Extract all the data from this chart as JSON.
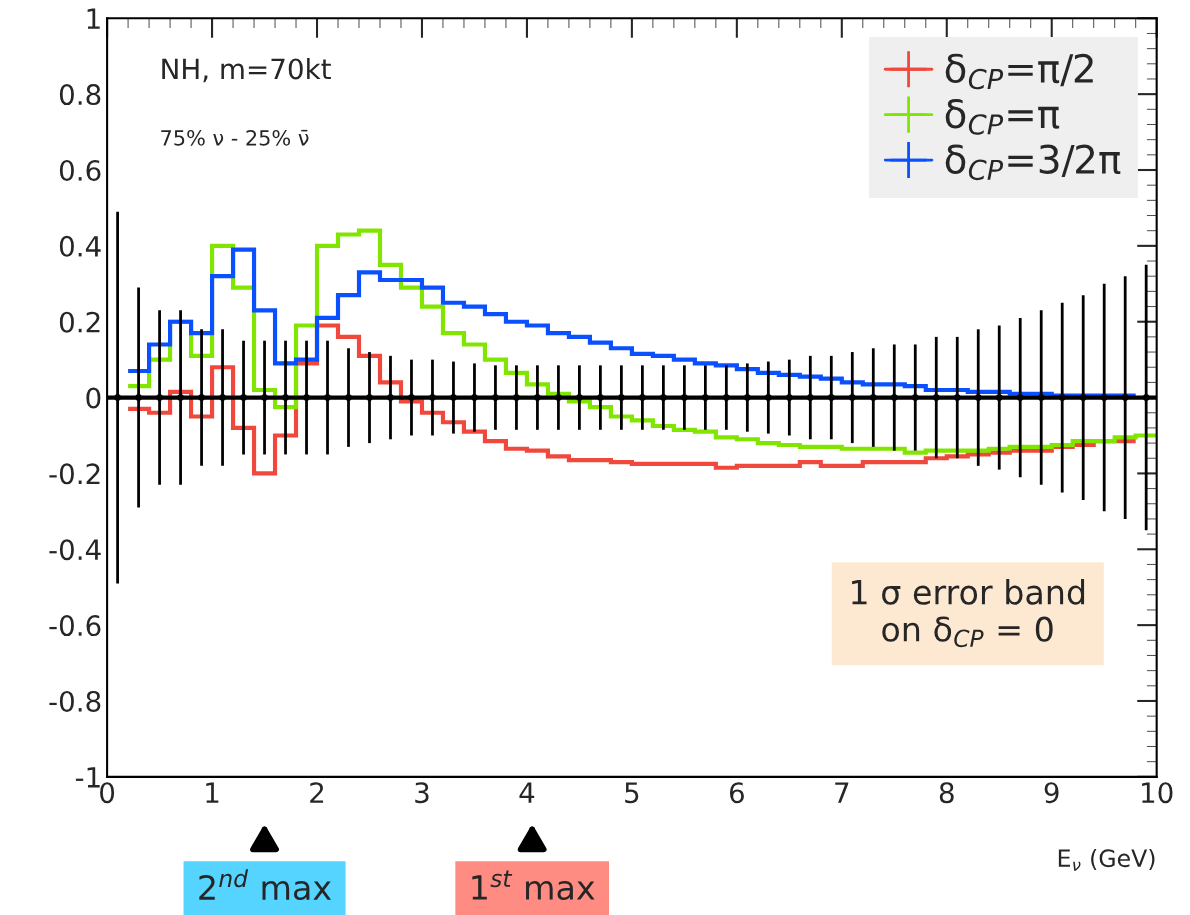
{
  "chart_data": {
    "type": "histogram",
    "bins": [
      0.2,
      0.4,
      0.6,
      0.8,
      1.0,
      1.2,
      1.4,
      1.6,
      1.8,
      2.0,
      2.2,
      2.4,
      2.6,
      2.8,
      3.0,
      3.2,
      3.4,
      3.6,
      3.8,
      4.0,
      4.2,
      4.4,
      4.6,
      4.8,
      5.0,
      5.2,
      5.4,
      5.6,
      5.8,
      6.0,
      6.2,
      6.4,
      6.6,
      6.8,
      7.0,
      7.2,
      7.4,
      7.6,
      7.8,
      8.0,
      8.2,
      8.4,
      8.6,
      8.8,
      9.0,
      9.2,
      9.4,
      9.6,
      9.8
    ],
    "series": [
      {
        "name": "δ$_{CP}$=π/2",
        "color": "#f0483c",
        "values": [
          -0.03,
          -0.04,
          0.015,
          -0.05,
          0.08,
          -0.08,
          -0.2,
          -0.1,
          0.09,
          0.19,
          0.16,
          0.11,
          0.04,
          -0.01,
          -0.04,
          -0.065,
          -0.09,
          -0.115,
          -0.135,
          -0.14,
          -0.155,
          -0.165,
          -0.165,
          -0.17,
          -0.175,
          -0.175,
          -0.175,
          -0.175,
          -0.185,
          -0.18,
          -0.18,
          -0.18,
          -0.17,
          -0.18,
          -0.18,
          -0.17,
          -0.17,
          -0.17,
          -0.16,
          -0.155,
          -0.15,
          -0.145,
          -0.14,
          -0.14,
          -0.13,
          -0.125,
          -0.115,
          -0.115
        ]
      },
      {
        "name": "δ$_{CP}$=π",
        "color": "#80e600",
        "bins": [
          0.2,
          0.4,
          0.6,
          0.8,
          1.0,
          1.2,
          1.4,
          1.6,
          1.8,
          2.0,
          2.2,
          2.4,
          2.6,
          2.8,
          3.0,
          3.2,
          3.4,
          3.6,
          3.8,
          4.0,
          4.2,
          4.4,
          4.6,
          4.8,
          5.0,
          5.2,
          5.4,
          5.6,
          5.8,
          6.0,
          6.2,
          6.4,
          6.6,
          6.8,
          7.0,
          7.2,
          7.4,
          7.6,
          7.8,
          8.0,
          8.2,
          8.4,
          8.6,
          8.8,
          9.0,
          9.2,
          9.4,
          9.6,
          9.8,
          10.0
        ],
        "values": [
          0.03,
          0.1,
          0.2,
          0.11,
          0.4,
          0.29,
          0.02,
          -0.025,
          0.19,
          0.4,
          0.43,
          0.44,
          0.35,
          0.29,
          0.24,
          0.17,
          0.14,
          0.1,
          0.065,
          0.035,
          0.01,
          -0.01,
          -0.025,
          -0.05,
          -0.06,
          -0.075,
          -0.085,
          -0.09,
          -0.105,
          -0.11,
          -0.12,
          -0.125,
          -0.13,
          -0.13,
          -0.135,
          -0.135,
          -0.135,
          -0.145,
          -0.14,
          -0.14,
          -0.14,
          -0.135,
          -0.13,
          -0.13,
          -0.125,
          -0.115,
          -0.115,
          -0.105,
          -0.1
        ]
      },
      {
        "name": "δ$_{CP}$=3/2π",
        "color": "#0a50ff",
        "values": [
          0.07,
          0.14,
          0.2,
          0.17,
          0.32,
          0.39,
          0.23,
          0.09,
          0.1,
          0.21,
          0.27,
          0.33,
          0.31,
          0.31,
          0.29,
          0.25,
          0.24,
          0.22,
          0.2,
          0.19,
          0.17,
          0.16,
          0.145,
          0.13,
          0.115,
          0.11,
          0.1,
          0.09,
          0.085,
          0.075,
          0.065,
          0.06,
          0.055,
          0.05,
          0.04,
          0.035,
          0.035,
          0.03,
          0.02,
          0.02,
          0.015,
          0.015,
          0.01,
          0.01,
          0.005,
          0.005,
          0.005,
          0.005
        ]
      },
      {
        "type": "scatter",
        "color": "#000000",
        "x": [
          0.1,
          0.3,
          0.5,
          0.7,
          0.9,
          1.1,
          1.3,
          1.5,
          1.7,
          1.9,
          2.1,
          2.3,
          2.5,
          2.7,
          2.9,
          3.1,
          3.3,
          3.5,
          3.7,
          3.9,
          4.1,
          4.3,
          4.5,
          4.7,
          4.9,
          5.1,
          5.3,
          5.5,
          5.7,
          5.9,
          6.1,
          6.3,
          6.5,
          6.7,
          6.9,
          7.1,
          7.3,
          7.5,
          7.7,
          7.9,
          8.1,
          8.3,
          8.5,
          8.7,
          8.9,
          9.1,
          9.3,
          9.5,
          9.7,
          9.9
        ],
        "values": [
          0,
          0,
          0,
          0,
          0,
          0,
          0,
          0,
          0,
          0,
          0,
          0,
          0,
          0,
          0,
          0,
          0,
          0,
          0,
          0,
          0,
          0,
          0,
          0,
          0,
          0,
          0,
          0,
          0,
          0,
          0,
          0,
          0,
          0,
          0,
          0,
          0,
          0,
          0,
          0,
          0,
          0,
          0,
          0,
          0,
          0,
          0,
          0,
          0,
          0
        ],
        "errors": [
          0.49,
          0.29,
          0.23,
          0.23,
          0.18,
          0.18,
          0.15,
          0.15,
          0.15,
          0.15,
          0.15,
          0.13,
          0.12,
          0.11,
          0.1,
          0.1,
          0.095,
          0.09,
          0.085,
          0.085,
          0.085,
          0.085,
          0.085,
          0.085,
          0.085,
          0.085,
          0.085,
          0.085,
          0.085,
          0.085,
          0.09,
          0.095,
          0.1,
          0.11,
          0.11,
          0.12,
          0.13,
          0.14,
          0.14,
          0.16,
          0.16,
          0.18,
          0.19,
          0.21,
          0.23,
          0.25,
          0.27,
          0.3,
          0.32,
          0.35
        ]
      }
    ],
    "xlim": [
      0,
      10
    ],
    "ylim": [
      -1,
      1
    ],
    "xticks": [
      0,
      1,
      2,
      3,
      4,
      5,
      6,
      7,
      8,
      9,
      10
    ],
    "yticks": [
      -1,
      -0.8,
      -0.6,
      -0.4,
      -0.2,
      0,
      0.2,
      0.4,
      0.6,
      0.8,
      1
    ],
    "xlabel": "E$_{ν}$ (GeV)",
    "ref_lines": [
      {
        "axis": "y",
        "value": 0,
        "color": "#000000"
      }
    ],
    "annotations": [
      "NH, m=70kt",
      "75% ν - 25% ν̄",
      "1 σ error band\non δ$_{CP}$ = 0",
      "2$^{nd}$ max",
      "1$^{st}$ max"
    ],
    "legend": "top right",
    "grid": false
  }
}
